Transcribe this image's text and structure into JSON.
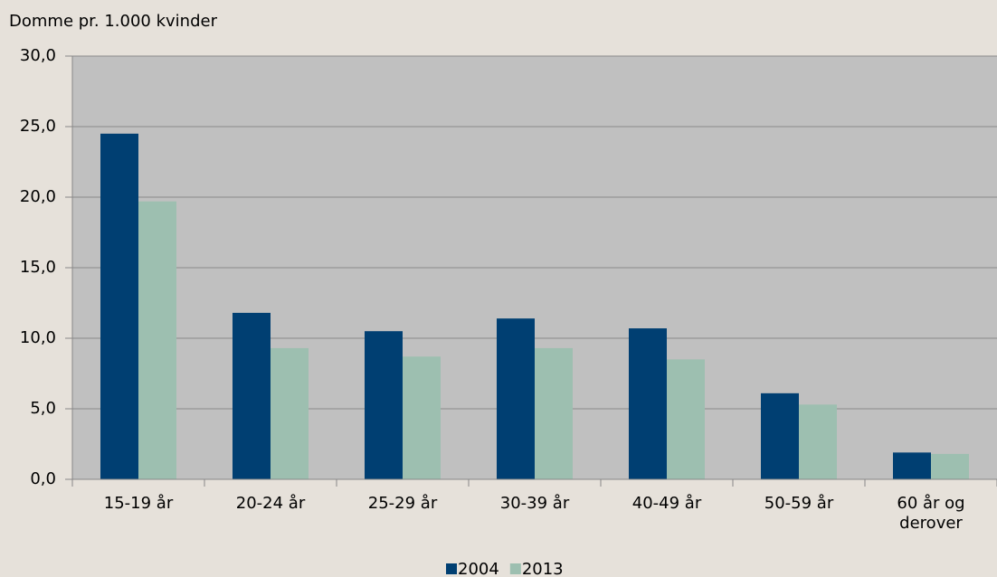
{
  "chart_data": {
    "type": "bar",
    "y_label": "Domme pr. 1.000 kvinder",
    "categories": [
      "15-19 år",
      "20-24 år",
      "25-29 år",
      "30-39 år",
      "40-49 år",
      "50-59 år",
      "60 år og derover"
    ],
    "series": [
      {
        "name": "2004",
        "color": "#003f72",
        "values": [
          24.5,
          11.8,
          10.5,
          11.4,
          10.7,
          6.1,
          1.9
        ]
      },
      {
        "name": "2013",
        "color": "#9dbfb0",
        "values": [
          19.7,
          9.3,
          8.7,
          9.3,
          8.5,
          5.3,
          1.8
        ]
      }
    ],
    "ylim": [
      0,
      30
    ],
    "yticks": [
      {
        "value": 0,
        "label": "0,0"
      },
      {
        "value": 5,
        "label": "5,0"
      },
      {
        "value": 10,
        "label": "10,0"
      },
      {
        "value": 15,
        "label": "15,0"
      },
      {
        "value": 20,
        "label": "20,0"
      },
      {
        "value": 25,
        "label": "25,0"
      },
      {
        "value": 30,
        "label": "30,0"
      }
    ],
    "grid": true,
    "legend": "bottom"
  }
}
